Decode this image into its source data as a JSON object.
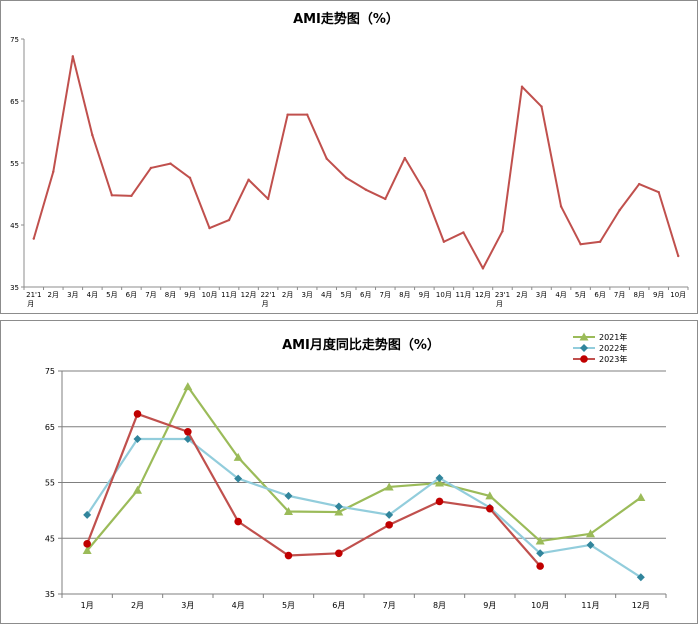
{
  "chart_data": [
    {
      "type": "line",
      "title": "AMI走势图（%）",
      "xlabel": "",
      "ylabel": "",
      "ylim": [
        35,
        75
      ],
      "yticks": [
        35,
        45,
        55,
        65,
        75
      ],
      "grid": false,
      "legend": "none",
      "categories": [
        "21'1月",
        "2月",
        "3月",
        "4月",
        "5月",
        "6月",
        "7月",
        "8月",
        "9月",
        "10月",
        "11月",
        "12月",
        "22'1月",
        "2月",
        "3月",
        "4月",
        "5月",
        "6月",
        "7月",
        "8月",
        "9月",
        "10月",
        "11月",
        "12月",
        "23'1月",
        "2月",
        "3月",
        "4月",
        "5月",
        "6月",
        "7月",
        "8月",
        "9月",
        "10月"
      ],
      "series": [
        {
          "name": "AMI",
          "color": "#c0504d",
          "values": [
            42.8,
            53.6,
            72.2,
            59.5,
            49.8,
            49.7,
            54.2,
            54.9,
            52.6,
            44.5,
            45.8,
            52.3,
            49.2,
            62.8,
            62.8,
            55.7,
            52.6,
            50.7,
            49.2,
            55.8,
            50.5,
            42.3,
            43.8,
            38.0,
            44.0,
            67.3,
            64.1,
            48.0,
            41.9,
            42.3,
            47.4,
            51.6,
            50.3,
            40.0
          ]
        }
      ]
    },
    {
      "type": "line",
      "title": "AMI月度同比走势图（%）",
      "xlabel": "",
      "ylabel": "",
      "ylim": [
        35,
        75
      ],
      "yticks": [
        35,
        45,
        55,
        65,
        75
      ],
      "grid": true,
      "legend": "top-right",
      "categories": [
        "1月",
        "2月",
        "3月",
        "4月",
        "5月",
        "6月",
        "7月",
        "8月",
        "9月",
        "10月",
        "11月",
        "12月"
      ],
      "series": [
        {
          "name": "2021年",
          "color": "#9bbb59",
          "marker": "triangle",
          "values": [
            42.8,
            53.6,
            72.2,
            59.5,
            49.8,
            49.7,
            54.2,
            54.9,
            52.6,
            44.5,
            45.8,
            52.3
          ]
        },
        {
          "name": "2022年",
          "color": "#92cddc",
          "marker_color": "#31859c",
          "marker": "diamond",
          "values": [
            49.2,
            62.8,
            62.8,
            55.7,
            52.6,
            50.7,
            49.2,
            55.8,
            50.5,
            42.3,
            43.8,
            38.0
          ]
        },
        {
          "name": "2023年",
          "color": "#c0504d",
          "marker_color": "#c00000",
          "marker": "circle",
          "values": [
            44.0,
            67.3,
            64.1,
            48.0,
            41.9,
            42.3,
            47.4,
            51.6,
            50.3,
            40.0,
            null,
            null
          ]
        }
      ]
    }
  ]
}
